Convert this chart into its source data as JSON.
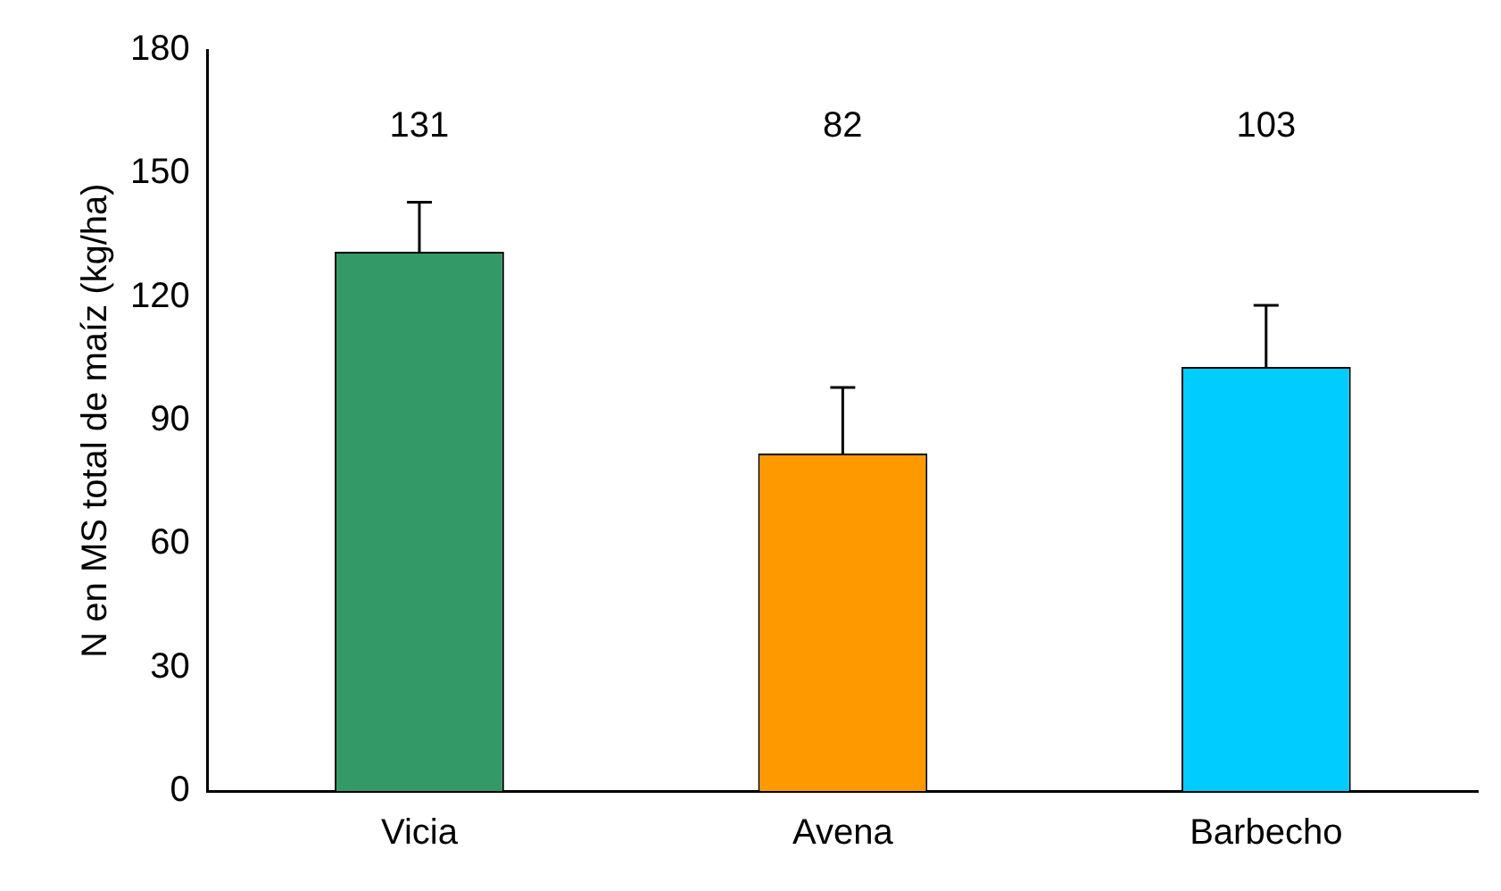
{
  "chart_data": {
    "type": "bar",
    "ylabel": "N en MS total de maíz (kg/ha)",
    "categories": [
      "Vicia",
      "Avena",
      "Barbecho"
    ],
    "values": [
      131,
      82,
      103
    ],
    "colors": [
      "#339966",
      "#ff9900",
      "#00ccff"
    ],
    "errors": [
      [
        131,
        143
      ],
      [
        82,
        98
      ],
      [
        103,
        118
      ]
    ],
    "ylim": [
      0,
      180
    ],
    "yticks": [
      0,
      30,
      60,
      90,
      120,
      150,
      180
    ],
    "annotations": [
      "131",
      "82",
      "103"
    ],
    "grid": false,
    "legend": false
  }
}
